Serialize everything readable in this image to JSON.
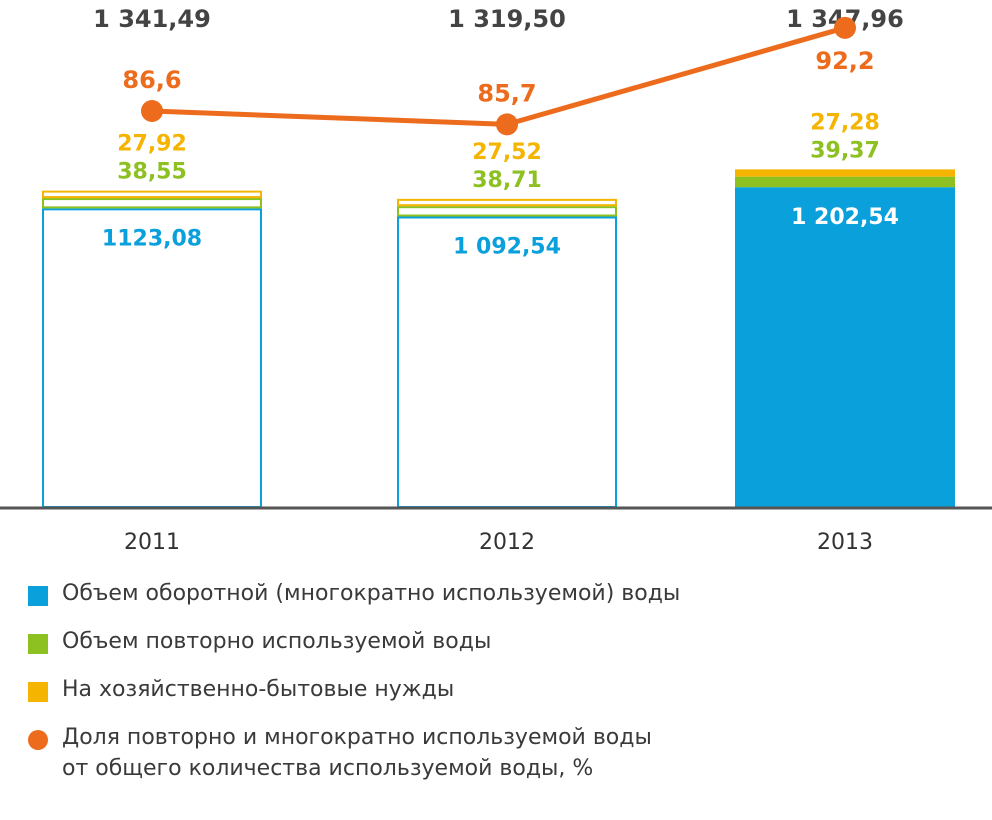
{
  "colors": {
    "recycled": "#0aa0dc",
    "reused": "#8dc021",
    "household": "#f5b400",
    "share": "#ec6b1c",
    "axis": "#555555",
    "total_text": "#444444"
  },
  "chart_data": {
    "type": "bar",
    "stacked": true,
    "categories": [
      "2011",
      "2012",
      "2013"
    ],
    "series": [
      {
        "name": "Объем оборотной (многократно используемой) воды",
        "values": [
          1123.08,
          1092.54,
          1202.54
        ],
        "labels": [
          "1123,08",
          "1 092,54",
          "1 202,54"
        ],
        "color": "#0aa0dc",
        "filled": [
          false,
          false,
          true
        ]
      },
      {
        "name": "Объем повторно используемой воды",
        "values": [
          38.55,
          38.71,
          39.37
        ],
        "labels": [
          "38,55",
          "38,71",
          "39,37"
        ],
        "color": "#8dc021",
        "filled": [
          false,
          false,
          true
        ]
      },
      {
        "name": "На хозяйственно-бытовые нужды",
        "values": [
          27.92,
          27.52,
          27.28
        ],
        "labels": [
          "27,92",
          "27,52",
          "27,28"
        ],
        "color": "#f5b400",
        "filled": [
          false,
          false,
          true
        ]
      }
    ],
    "totals": {
      "values": [
        1341.49,
        1319.5,
        1347.96
      ],
      "labels": [
        "1 341,49",
        "1 319,50",
        "1 347,96"
      ]
    },
    "line_series": {
      "name": "Доля повторно и многократно используемой воды от общего количества используемой воды, %",
      "values": [
        86.6,
        85.7,
        92.2
      ],
      "labels": [
        "86,6",
        "85,7",
        "92,2"
      ],
      "color": "#ec6b1c"
    },
    "ylim": [
      0,
      1400
    ],
    "line_ylim": [
      60,
      100
    ],
    "grid": false,
    "legend_position": "bottom"
  },
  "legend": [
    {
      "label": "Объем оборотной (многократно используемой) воды",
      "color": "#0aa0dc",
      "shape": "square"
    },
    {
      "label": "Объем повторно используемой воды",
      "color": "#8dc021",
      "shape": "square"
    },
    {
      "label": "На хозяйственно-бытовые нужды",
      "color": "#f5b400",
      "shape": "square"
    },
    {
      "label": "Доля повторно и многократно используемой воды\nот общего количества используемой воды, %",
      "color": "#ec6b1c",
      "shape": "circle"
    }
  ]
}
